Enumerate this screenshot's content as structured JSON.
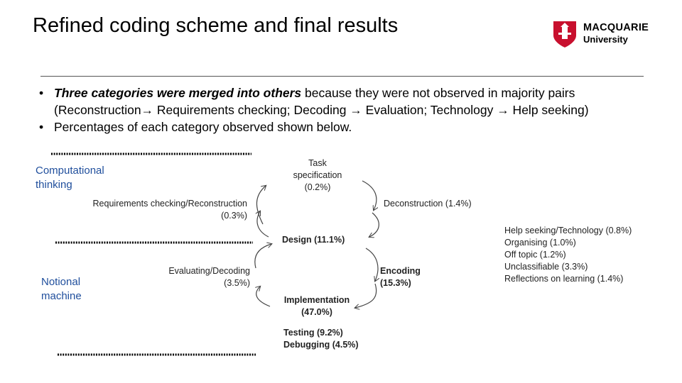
{
  "title": "Refined coding scheme and final results",
  "logo": {
    "line1": "MACQUARIE",
    "line2": "University"
  },
  "bullets": [
    {
      "emphasis": "Three categories were merged into others",
      "rest": " because they were not observed in majority pairs",
      "line2": "(Reconstruction→ Requirements checking; Decoding → Evaluation; Technology → Help seeking)"
    },
    {
      "text": "Percentages of each category observed shown below."
    }
  ],
  "side_labels": {
    "computational_thinking": [
      "Computational",
      "thinking"
    ],
    "notional_machine": [
      "Notional",
      "machine"
    ]
  },
  "nodes": {
    "task_specification": [
      "Task",
      "specification",
      "(0.2%)"
    ],
    "requirements_checking": [
      "Requirements checking/Reconstruction",
      "(0.3%)"
    ],
    "deconstruction": "Deconstruction (1.4%)",
    "design": "Design (11.1%)",
    "evaluating_decoding": [
      "Evaluating/Decoding",
      "(3.5%)"
    ],
    "encoding": [
      "Encoding",
      "(15.3%)"
    ],
    "implementation": [
      "Implementation",
      "(47.0%)"
    ],
    "testing": "Testing (9.2%)",
    "debugging": "Debugging (4.5%)"
  },
  "other_categories": [
    "Help seeking/Technology (0.8%)",
    "Organising (1.0%)",
    "Off topic (1.2%)",
    "Unclassifiable (3.3%)",
    "Reflections on learning (1.4%)"
  ],
  "colors": {
    "side_label": "#1f4e9c",
    "logo_red": "#c8102e"
  }
}
